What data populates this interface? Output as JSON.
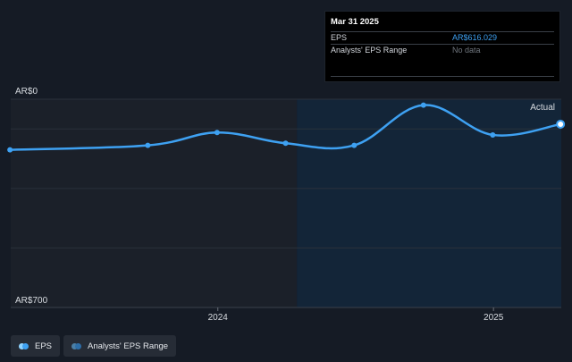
{
  "tooltip": {
    "date": "Mar 31 2025",
    "rows": [
      {
        "label": "EPS",
        "value": "AR$616.029"
      },
      {
        "label": "Analysts' EPS Range",
        "value": "No data"
      }
    ]
  },
  "legend": [
    {
      "label": "EPS",
      "color": "#3ea1f2",
      "color2": "#8fd3ff"
    },
    {
      "label": "Analysts' EPS Range",
      "color": "#2d6ea8",
      "color2": "#4b7fa6"
    }
  ],
  "colors": {
    "background": "#151b25",
    "past_region": "#1b2029",
    "future_region": "#132538",
    "line": "#3ea1f2",
    "grid": "#2b313b"
  },
  "chart_data": {
    "type": "line",
    "title": "",
    "xlabel": "",
    "ylabel": "",
    "ylim": [
      0,
      700
    ],
    "y_tick_labels": [
      "AR$700",
      "AR$0"
    ],
    "y_ticks": [
      0,
      700
    ],
    "x_tick_labels": [
      "2024",
      "2025"
    ],
    "x_ticks": [
      "2024-01-01",
      "2025-01-01"
    ],
    "x_range": [
      "2023-04-01",
      "2025-04-01"
    ],
    "forecast_start": "2024-04-15",
    "grid": true,
    "annotation": "Actual",
    "series": [
      {
        "name": "EPS",
        "x": [
          "2023-03-31",
          "2023-09-30",
          "2023-12-31",
          "2024-03-31",
          "2024-06-30",
          "2024-09-30",
          "2024-12-31",
          "2025-03-31"
        ],
        "values": [
          530,
          545,
          588,
          552,
          545,
          680,
          580,
          616.029
        ]
      }
    ]
  }
}
